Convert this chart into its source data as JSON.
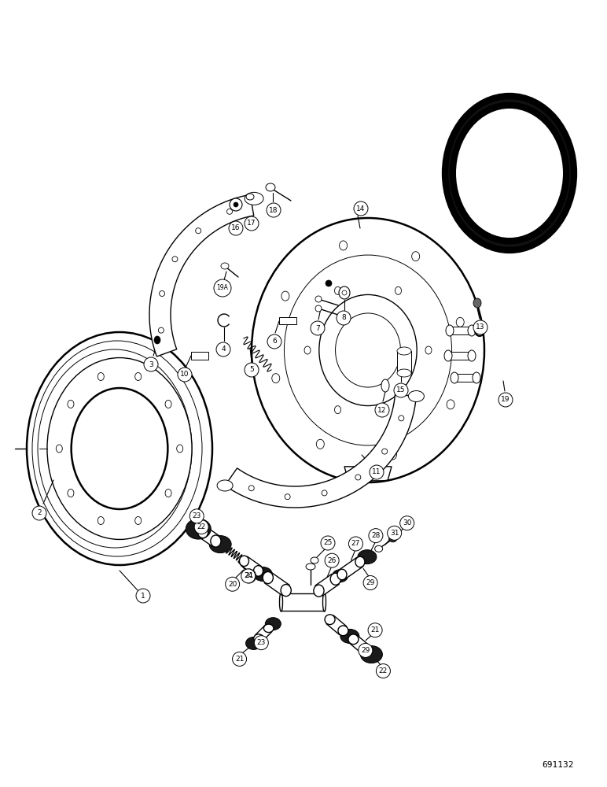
{
  "bg_color": "#ffffff",
  "line_color": "#000000",
  "figure_number": "691132",
  "fig_num_fontsize": 8
}
